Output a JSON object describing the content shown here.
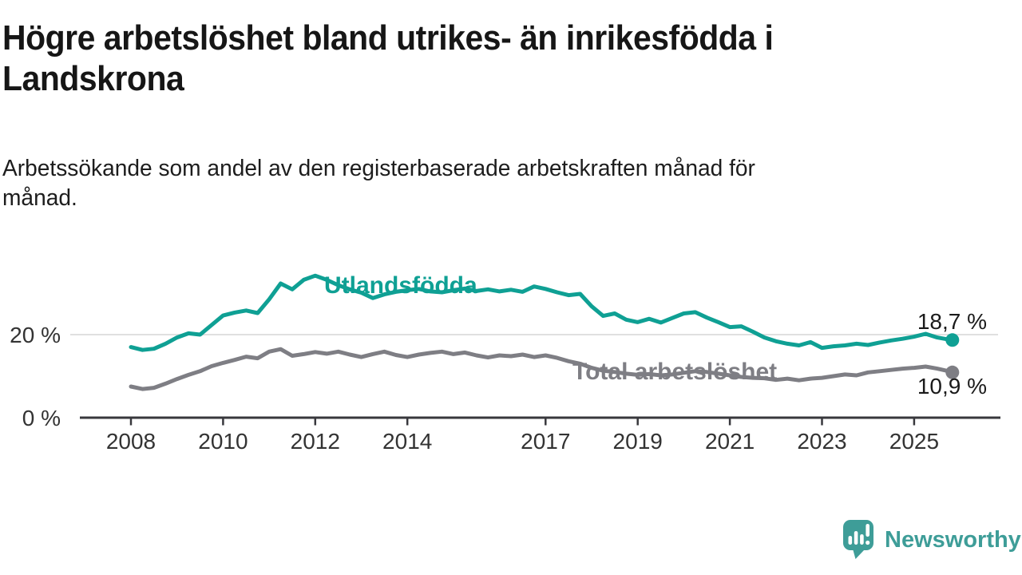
{
  "title": "Högre arbetslöshet bland utrikes- än inrikesfödda i\nLandskrona",
  "subtitle": "Arbetssökande som andel av den registerbaserade arbetskraften månad för\nmånad.",
  "colors": {
    "series1": "#0FA094",
    "series2": "#7E7E84",
    "grid": "#E0E0E0",
    "axis": "#38383D",
    "tick_text": "#333333",
    "heading_text": "#161616",
    "logo_teal": "#3E9D98",
    "background": "#FFFFFF"
  },
  "chart_data": {
    "type": "line",
    "title": "Högre arbetslöshet bland utrikes- än inrikesfödda i Landskrona",
    "subtitle": "Arbetssökande som andel av den registerbaserade arbetskraften månad för månad.",
    "xlabel": "",
    "ylabel": "",
    "ylim": [
      0,
      36
    ],
    "grid": "horizontal-only",
    "legend": "inline-labels",
    "x": [
      2008,
      2008.25,
      2008.5,
      2008.75,
      2009,
      2009.25,
      2009.5,
      2009.75,
      2010,
      2010.25,
      2010.5,
      2010.75,
      2011,
      2011.25,
      2011.5,
      2011.75,
      2012,
      2012.25,
      2012.5,
      2012.75,
      2013,
      2013.25,
      2013.5,
      2013.75,
      2014,
      2014.25,
      2014.5,
      2014.75,
      2015,
      2015.25,
      2015.5,
      2015.75,
      2016,
      2016.25,
      2016.5,
      2016.75,
      2017,
      2017.25,
      2017.5,
      2017.75,
      2018,
      2018.25,
      2018.5,
      2018.75,
      2019,
      2019.25,
      2019.5,
      2019.75,
      2020,
      2020.25,
      2020.5,
      2020.75,
      2021,
      2021.25,
      2021.5,
      2021.75,
      2022,
      2022.25,
      2022.5,
      2022.75,
      2023,
      2023.25,
      2023.5,
      2023.75,
      2024,
      2024.25,
      2024.5,
      2024.75,
      2025,
      2025.25,
      2025.5,
      2025.75,
      2025.83
    ],
    "series": [
      {
        "name": "Utlandsfödda",
        "color": "#0FA094",
        "end_label": "18,7 %",
        "end_value": 18.7,
        "values": [
          17,
          16.3,
          16.6,
          17.8,
          19.3,
          20.3,
          20,
          22.3,
          24.6,
          25.3,
          25.8,
          25.2,
          28.5,
          32.3,
          30.9,
          33.2,
          34.2,
          33.2,
          31.9,
          30.9,
          30.1,
          28.8,
          29.7,
          30.3,
          30.7,
          31,
          30.4,
          30.2,
          30.7,
          31.1,
          30.5,
          30.9,
          30.4,
          30.8,
          30.3,
          31.6,
          31,
          30.2,
          29.5,
          29.8,
          26.8,
          24.5,
          25.1,
          23.6,
          23,
          23.8,
          22.9,
          24,
          25.1,
          25.4,
          24.1,
          23,
          21.8,
          22,
          20.7,
          19.3,
          18.4,
          17.8,
          17.4,
          18.2,
          16.8,
          17.2,
          17.4,
          17.8,
          17.5,
          18.1,
          18.6,
          19,
          19.5,
          20.2,
          19.3,
          18.8,
          18.7
        ]
      },
      {
        "name": "Total arbetslöshet",
        "color": "#7E7E84",
        "end_label": "10,9 %",
        "end_value": 10.9,
        "values": [
          7.5,
          6.9,
          7.2,
          8.2,
          9.3,
          10.3,
          11.2,
          12.4,
          13.2,
          13.9,
          14.7,
          14.3,
          15.9,
          16.5,
          14.9,
          15.3,
          15.8,
          15.4,
          15.9,
          15.2,
          14.6,
          15.3,
          15.9,
          15.1,
          14.6,
          15.2,
          15.6,
          15.9,
          15.3,
          15.7,
          15,
          14.5,
          15,
          14.8,
          15.2,
          14.6,
          15,
          14.4,
          13.6,
          13,
          12,
          11.3,
          11,
          10.6,
          10.3,
          10.5,
          10.2,
          10.4,
          10.8,
          11.2,
          11,
          10.6,
          10.2,
          9.8,
          9.6,
          9.5,
          9.1,
          9.4,
          9,
          9.4,
          9.6,
          10,
          10.4,
          10.2,
          10.9,
          11.2,
          11.5,
          11.8,
          12,
          12.3,
          11.8,
          11.2,
          10.9
        ]
      }
    ],
    "xticks": [
      {
        "value": 2008,
        "label": "2008"
      },
      {
        "value": 2010,
        "label": "2010"
      },
      {
        "value": 2012,
        "label": "2012"
      },
      {
        "value": 2014,
        "label": "2014"
      },
      {
        "value": 2017,
        "label": "2017"
      },
      {
        "value": 2019,
        "label": "2019"
      },
      {
        "value": 2021,
        "label": "2021"
      },
      {
        "value": 2023,
        "label": "2023"
      },
      {
        "value": 2025,
        "label": "2025"
      }
    ],
    "yticks": [
      {
        "value": 0,
        "label": "0 %"
      },
      {
        "value": 20,
        "label": "20 %"
      }
    ]
  },
  "footer": {
    "brand": "Newsworthy"
  }
}
